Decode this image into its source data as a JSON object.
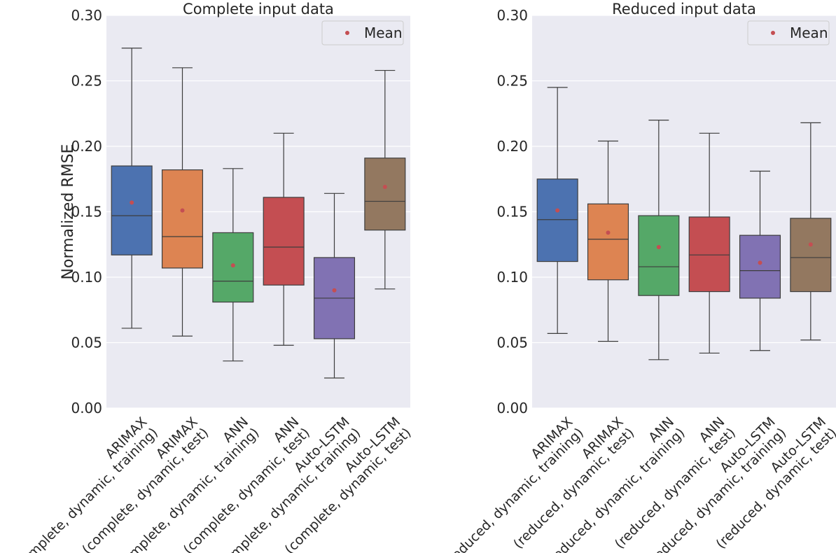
{
  "chart_data": [
    {
      "type": "box",
      "title": "Complete input data",
      "xlabel": "",
      "ylabel": "Normalized RMSE",
      "ylim": [
        0,
        0.3
      ],
      "yticks": [
        "0.00",
        "0.05",
        "0.10",
        "0.15",
        "0.20",
        "0.25",
        "0.30"
      ],
      "grid": true,
      "legend": {
        "position": "top-right",
        "entries": [
          "Mean"
        ]
      },
      "mean_marker_color": "#c44e52",
      "categories": [
        "ARIMAX\n(complete, dynamic, training)",
        "ARIMAX\n(complete, dynamic, test)",
        "ANN\n(complete, dynamic, training)",
        "ANN\n(complete, dynamic, test)",
        "Auto-LSTM\n(complete, dynamic, training)",
        "Auto-LSTM\n(complete, dynamic, test)"
      ],
      "boxes": [
        {
          "whisker_low": 0.061,
          "q1": 0.117,
          "median": 0.147,
          "q3": 0.185,
          "whisker_high": 0.275,
          "mean": 0.157,
          "color": "#4c72b0"
        },
        {
          "whisker_low": 0.055,
          "q1": 0.107,
          "median": 0.131,
          "q3": 0.182,
          "whisker_high": 0.26,
          "mean": 0.151,
          "color": "#dd8452"
        },
        {
          "whisker_low": 0.036,
          "q1": 0.081,
          "median": 0.097,
          "q3": 0.134,
          "whisker_high": 0.183,
          "mean": 0.109,
          "color": "#55a868"
        },
        {
          "whisker_low": 0.048,
          "q1": 0.094,
          "median": 0.123,
          "q3": 0.161,
          "whisker_high": 0.21,
          "mean": 0.136,
          "color": "#c44e52"
        },
        {
          "whisker_low": 0.023,
          "q1": 0.053,
          "median": 0.084,
          "q3": 0.115,
          "whisker_high": 0.164,
          "mean": 0.09,
          "color": "#8172b3"
        },
        {
          "whisker_low": 0.091,
          "q1": 0.136,
          "median": 0.158,
          "q3": 0.191,
          "whisker_high": 0.258,
          "mean": 0.169,
          "color": "#937860"
        }
      ]
    },
    {
      "type": "box",
      "title": "Reduced input data",
      "xlabel": "",
      "ylabel": "",
      "ylim": [
        0,
        0.3
      ],
      "yticks": [
        "0.00",
        "0.05",
        "0.10",
        "0.15",
        "0.20",
        "0.25",
        "0.30"
      ],
      "grid": true,
      "legend": {
        "position": "top-right",
        "entries": [
          "Mean"
        ]
      },
      "mean_marker_color": "#c44e52",
      "categories": [
        "ARIMAX\n(reduced, dynamic, training)",
        "ARIMAX\n(reduced, dynamic, test)",
        "ANN\n(reduced, dynamic, training)",
        "ANN\n(reduced, dynamic, test)",
        "Auto-LSTM\n(reduced, dynamic, training)",
        "Auto-LSTM\n(reduced, dynamic, test)"
      ],
      "boxes": [
        {
          "whisker_low": 0.057,
          "q1": 0.112,
          "median": 0.144,
          "q3": 0.175,
          "whisker_high": 0.245,
          "mean": 0.151,
          "color": "#4c72b0"
        },
        {
          "whisker_low": 0.051,
          "q1": 0.098,
          "median": 0.129,
          "q3": 0.156,
          "whisker_high": 0.204,
          "mean": 0.134,
          "color": "#dd8452"
        },
        {
          "whisker_low": 0.037,
          "q1": 0.086,
          "median": 0.108,
          "q3": 0.147,
          "whisker_high": 0.22,
          "mean": 0.123,
          "color": "#55a868"
        },
        {
          "whisker_low": 0.042,
          "q1": 0.089,
          "median": 0.117,
          "q3": 0.146,
          "whisker_high": 0.21,
          "mean": 0.128,
          "color": "#c44e52"
        },
        {
          "whisker_low": 0.044,
          "q1": 0.084,
          "median": 0.105,
          "q3": 0.132,
          "whisker_high": 0.181,
          "mean": 0.111,
          "color": "#8172b3"
        },
        {
          "whisker_low": 0.052,
          "q1": 0.089,
          "median": 0.115,
          "q3": 0.145,
          "whisker_high": 0.218,
          "mean": 0.125,
          "color": "#937860"
        }
      ]
    }
  ]
}
